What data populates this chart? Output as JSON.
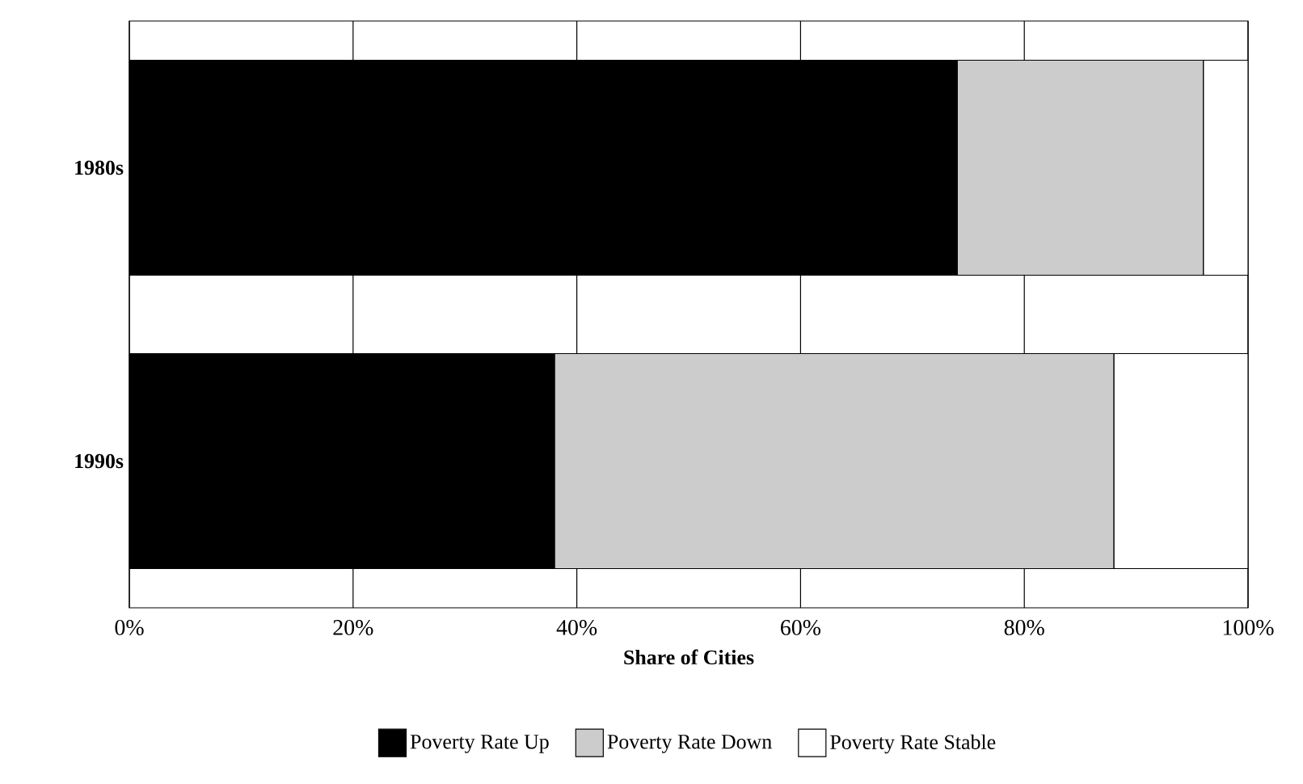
{
  "chart_data": {
    "type": "bar",
    "orientation": "horizontal",
    "stacked": true,
    "xlabel": "Share of Cities",
    "categories": [
      "1980s",
      "1990s"
    ],
    "series": [
      {
        "name": "Poverty Rate Up",
        "color": "#000000",
        "values": [
          74,
          38
        ]
      },
      {
        "name": "Poverty Rate Down",
        "color": "#cccccc",
        "values": [
          22,
          50
        ]
      },
      {
        "name": "Poverty Rate Stable",
        "color": "#ffffff",
        "values": [
          4,
          12
        ]
      }
    ],
    "xlim": [
      0,
      100
    ],
    "xticks": [
      {
        "value": 0,
        "label": "0%"
      },
      {
        "value": 20,
        "label": "20%"
      },
      {
        "value": 40,
        "label": "40%"
      },
      {
        "value": 60,
        "label": "60%"
      },
      {
        "value": 80,
        "label": "80%"
      },
      {
        "value": 100,
        "label": "100%"
      }
    ],
    "grid": "x",
    "legend": "bottom"
  }
}
